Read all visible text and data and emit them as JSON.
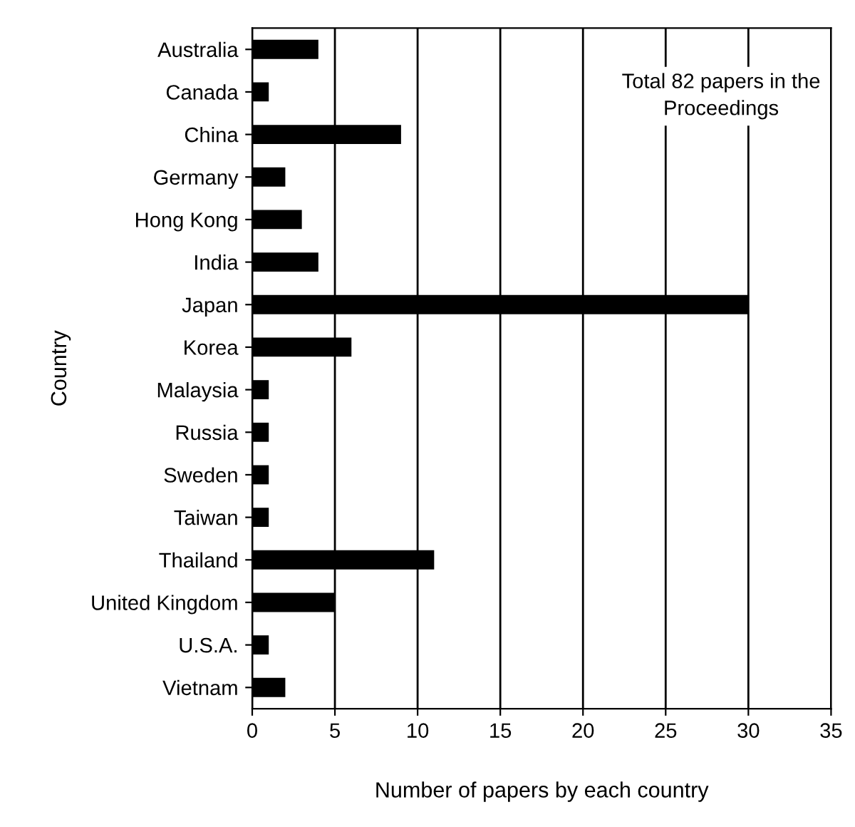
{
  "chart_data": {
    "type": "bar",
    "orientation": "horizontal",
    "categories": [
      "Australia",
      "Canada",
      "China",
      "Germany",
      "Hong Kong",
      "India",
      "Japan",
      "Korea",
      "Malaysia",
      "Russia",
      "Sweden",
      "Taiwan",
      "Thailand",
      "United Kingdom",
      "U.S.A.",
      "Vietnam"
    ],
    "values": [
      4,
      1,
      9,
      2,
      3,
      4,
      30,
      6,
      1,
      1,
      1,
      1,
      11,
      5,
      1,
      2
    ],
    "color": "#000000",
    "xlim": [
      0,
      35
    ],
    "xticks": [
      0,
      5,
      10,
      15,
      20,
      25,
      30,
      35
    ],
    "xlabel": "Number of papers by each country",
    "ylabel": "Country",
    "annotations": [
      "Total 82 papers in the Proceedings"
    ],
    "grid": "x"
  }
}
